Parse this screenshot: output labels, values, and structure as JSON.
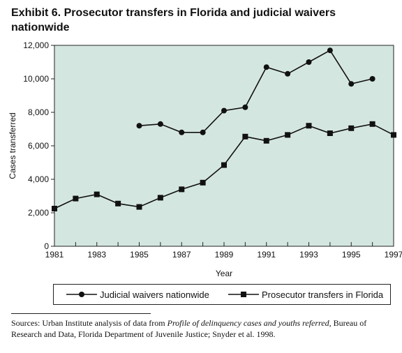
{
  "title": "Exhibit 6. Prosecutor transfers in Florida and judicial waivers nationwide",
  "chart_data": {
    "type": "line",
    "xlabel": "Year",
    "ylabel": "Cases transferred",
    "xlim": [
      1981,
      1997
    ],
    "ylim": [
      0,
      12000
    ],
    "xticks": [
      1981,
      1983,
      1985,
      1987,
      1989,
      1991,
      1993,
      1995,
      1997
    ],
    "yticks": [
      0,
      2000,
      4000,
      6000,
      8000,
      10000,
      12000
    ],
    "ytick_labels": [
      "0",
      "2,000",
      "4,000",
      "6,000",
      "8,000",
      "10,000",
      "12,000"
    ],
    "background_color": "#d4e6e0",
    "grid": false,
    "legend_position": "bottom",
    "series": [
      {
        "name": "Judicial waivers nationwide",
        "marker": "circle",
        "color": "#111111",
        "x": [
          1985,
          1986,
          1987,
          1988,
          1989,
          1990,
          1991,
          1992,
          1993,
          1994,
          1995,
          1996
        ],
        "y": [
          7200,
          7300,
          6800,
          6800,
          8100,
          8300,
          10700,
          10300,
          11000,
          11700,
          9700,
          10000
        ]
      },
      {
        "name": "Prosecutor transfers in Florida",
        "marker": "square",
        "color": "#111111",
        "x": [
          1981,
          1982,
          1983,
          1984,
          1985,
          1986,
          1987,
          1988,
          1989,
          1990,
          1991,
          1992,
          1993,
          1994,
          1995,
          1996,
          1997
        ],
        "y": [
          2250,
          2850,
          3100,
          2550,
          2350,
          2900,
          3400,
          3800,
          4850,
          6550,
          6300,
          6650,
          7200,
          6750,
          7050,
          7300,
          6650
        ]
      }
    ]
  },
  "source": {
    "prefix": "Sources: Urban Institute analysis of data from ",
    "italic": "Profile of delinquency cases and youths referred",
    "suffix": ", Bureau of Research and Data, Florida Department of Juvenile Justice; Snyder et al. 1998."
  }
}
